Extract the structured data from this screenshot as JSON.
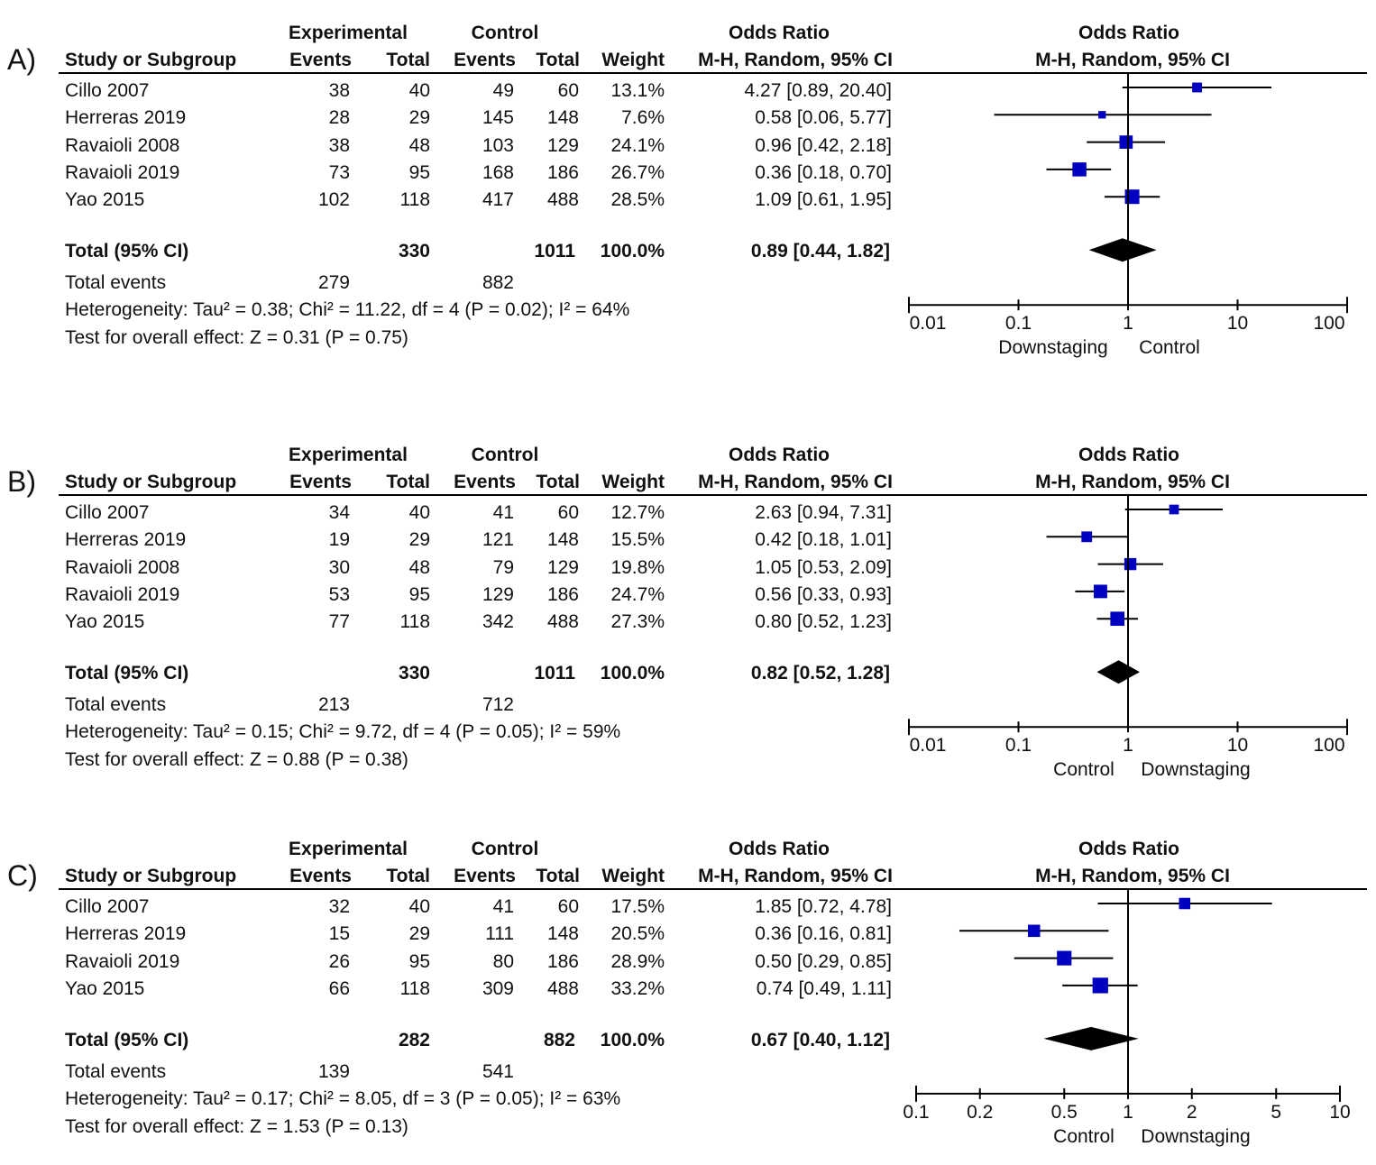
{
  "columns": {
    "experimental": "Experimental",
    "control": "Control",
    "odds_ratio": "Odds Ratio",
    "study": "Study or Subgroup",
    "events": "Events",
    "total": "Total",
    "weight": "Weight",
    "method": "M-H, Random, 95% CI",
    "total_events_label": "Total events"
  },
  "colors": {
    "square": "#0000c0",
    "line": "#000000"
  },
  "chart_data": [
    {
      "type": "forest",
      "panel_label": "A)",
      "studies": [
        {
          "name": "Cillo 2007",
          "exp_events": "38",
          "exp_total": "40",
          "ctl_events": "49",
          "ctl_total": "60",
          "weight": "13.1%",
          "ci_text": "4.27 [0.89, 20.40]",
          "or": 4.27,
          "lo": 0.89,
          "hi": 20.4,
          "w": 13.1
        },
        {
          "name": "Herreras 2019",
          "exp_events": "28",
          "exp_total": "29",
          "ctl_events": "145",
          "ctl_total": "148",
          "weight": "7.6%",
          "ci_text": "0.58 [0.06, 5.77]",
          "or": 0.58,
          "lo": 0.06,
          "hi": 5.77,
          "w": 7.6
        },
        {
          "name": "Ravaioli 2008",
          "exp_events": "38",
          "exp_total": "48",
          "ctl_events": "103",
          "ctl_total": "129",
          "weight": "24.1%",
          "ci_text": "0.96 [0.42, 2.18]",
          "or": 0.96,
          "lo": 0.42,
          "hi": 2.18,
          "w": 24.1
        },
        {
          "name": "Ravaioli 2019",
          "exp_events": "73",
          "exp_total": "95",
          "ctl_events": "168",
          "ctl_total": "186",
          "weight": "26.7%",
          "ci_text": "0.36 [0.18, 0.70]",
          "or": 0.36,
          "lo": 0.18,
          "hi": 0.7,
          "w": 26.7
        },
        {
          "name": "Yao 2015",
          "exp_events": "102",
          "exp_total": "118",
          "ctl_events": "417",
          "ctl_total": "488",
          "weight": "28.5%",
          "ci_text": "1.09 [0.61, 1.95]",
          "or": 1.09,
          "lo": 0.61,
          "hi": 1.95,
          "w": 28.5
        }
      ],
      "total": {
        "label": "Total (95% CI)",
        "exp_total": "330",
        "ctl_total": "1011",
        "weight": "100.0%",
        "ci_text": "0.89 [0.44, 1.82]",
        "or": 0.89,
        "lo": 0.44,
        "hi": 1.82
      },
      "total_events": {
        "exp": "279",
        "ctl": "882"
      },
      "heterogeneity": "Heterogeneity: Tau² = 0.38; Chi² = 11.22, df = 4 (P = 0.02); I² = 64%",
      "overall_effect": "Test for overall effect: Z = 0.31 (P = 0.75)",
      "axis": {
        "min": 0.01,
        "max": 100,
        "ticks": [
          0.01,
          0.1,
          1,
          10,
          100
        ],
        "tick_labels": [
          "0.01",
          "0.1",
          "1",
          "10",
          "100"
        ],
        "left_label": "Downstaging",
        "right_label": "Control"
      }
    },
    {
      "type": "forest",
      "panel_label": "B)",
      "studies": [
        {
          "name": "Cillo 2007",
          "exp_events": "34",
          "exp_total": "40",
          "ctl_events": "41",
          "ctl_total": "60",
          "weight": "12.7%",
          "ci_text": "2.63 [0.94, 7.31]",
          "or": 2.63,
          "lo": 0.94,
          "hi": 7.31,
          "w": 12.7
        },
        {
          "name": "Herreras 2019",
          "exp_events": "19",
          "exp_total": "29",
          "ctl_events": "121",
          "ctl_total": "148",
          "weight": "15.5%",
          "ci_text": "0.42 [0.18, 1.01]",
          "or": 0.42,
          "lo": 0.18,
          "hi": 1.01,
          "w": 15.5
        },
        {
          "name": "Ravaioli 2008",
          "exp_events": "30",
          "exp_total": "48",
          "ctl_events": "79",
          "ctl_total": "129",
          "weight": "19.8%",
          "ci_text": "1.05 [0.53, 2.09]",
          "or": 1.05,
          "lo": 0.53,
          "hi": 2.09,
          "w": 19.8
        },
        {
          "name": "Ravaioli 2019",
          "exp_events": "53",
          "exp_total": "95",
          "ctl_events": "129",
          "ctl_total": "186",
          "weight": "24.7%",
          "ci_text": "0.56 [0.33, 0.93]",
          "or": 0.56,
          "lo": 0.33,
          "hi": 0.93,
          "w": 24.7
        },
        {
          "name": "Yao 2015",
          "exp_events": "77",
          "exp_total": "118",
          "ctl_events": "342",
          "ctl_total": "488",
          "weight": "27.3%",
          "ci_text": "0.80 [0.52, 1.23]",
          "or": 0.8,
          "lo": 0.52,
          "hi": 1.23,
          "w": 27.3
        }
      ],
      "total": {
        "label": "Total (95% CI)",
        "exp_total": "330",
        "ctl_total": "1011",
        "weight": "100.0%",
        "ci_text": "0.82 [0.52, 1.28]",
        "or": 0.82,
        "lo": 0.52,
        "hi": 1.28
      },
      "total_events": {
        "exp": "213",
        "ctl": "712"
      },
      "heterogeneity": "Heterogeneity: Tau² = 0.15; Chi² = 9.72, df = 4 (P = 0.05); I² = 59%",
      "overall_effect": "Test for overall effect: Z = 0.88 (P = 0.38)",
      "axis": {
        "min": 0.01,
        "max": 100,
        "ticks": [
          0.01,
          0.1,
          1,
          10,
          100
        ],
        "tick_labels": [
          "0.01",
          "0.1",
          "1",
          "10",
          "100"
        ],
        "left_label": "Control",
        "right_label": "Downstaging"
      }
    },
    {
      "type": "forest",
      "panel_label": "C)",
      "studies": [
        {
          "name": "Cillo 2007",
          "exp_events": "32",
          "exp_total": "40",
          "ctl_events": "41",
          "ctl_total": "60",
          "weight": "17.5%",
          "ci_text": "1.85 [0.72, 4.78]",
          "or": 1.85,
          "lo": 0.72,
          "hi": 4.78,
          "w": 17.5
        },
        {
          "name": "Herreras 2019",
          "exp_events": "15",
          "exp_total": "29",
          "ctl_events": "111",
          "ctl_total": "148",
          "weight": "20.5%",
          "ci_text": "0.36 [0.16, 0.81]",
          "or": 0.36,
          "lo": 0.16,
          "hi": 0.81,
          "w": 20.5
        },
        {
          "name": "Ravaioli 2019",
          "exp_events": "26",
          "exp_total": "95",
          "ctl_events": "80",
          "ctl_total": "186",
          "weight": "28.9%",
          "ci_text": "0.50 [0.29, 0.85]",
          "or": 0.5,
          "lo": 0.29,
          "hi": 0.85,
          "w": 28.9
        },
        {
          "name": "Yao 2015",
          "exp_events": "66",
          "exp_total": "118",
          "ctl_events": "309",
          "ctl_total": "488",
          "weight": "33.2%",
          "ci_text": "0.74 [0.49, 1.11]",
          "or": 0.74,
          "lo": 0.49,
          "hi": 1.11,
          "w": 33.2
        }
      ],
      "total": {
        "label": "Total (95% CI)",
        "exp_total": "282",
        "ctl_total": "882",
        "weight": "100.0%",
        "ci_text": "0.67 [0.40, 1.12]",
        "or": 0.67,
        "lo": 0.4,
        "hi": 1.12
      },
      "total_events": {
        "exp": "139",
        "ctl": "541"
      },
      "heterogeneity": "Heterogeneity: Tau² = 0.17; Chi² = 8.05, df = 3 (P = 0.05); I² = 63%",
      "overall_effect": "Test for overall effect: Z = 1.53 (P = 0.13)",
      "axis": {
        "min": 0.1,
        "max": 10,
        "ticks": [
          0.1,
          0.2,
          0.5,
          1,
          2,
          5,
          10
        ],
        "tick_labels": [
          "0.1",
          "0.2",
          "0.5",
          "1",
          "2",
          "5",
          "10"
        ],
        "left_label": "Control",
        "right_label": "Downstaging"
      }
    }
  ]
}
